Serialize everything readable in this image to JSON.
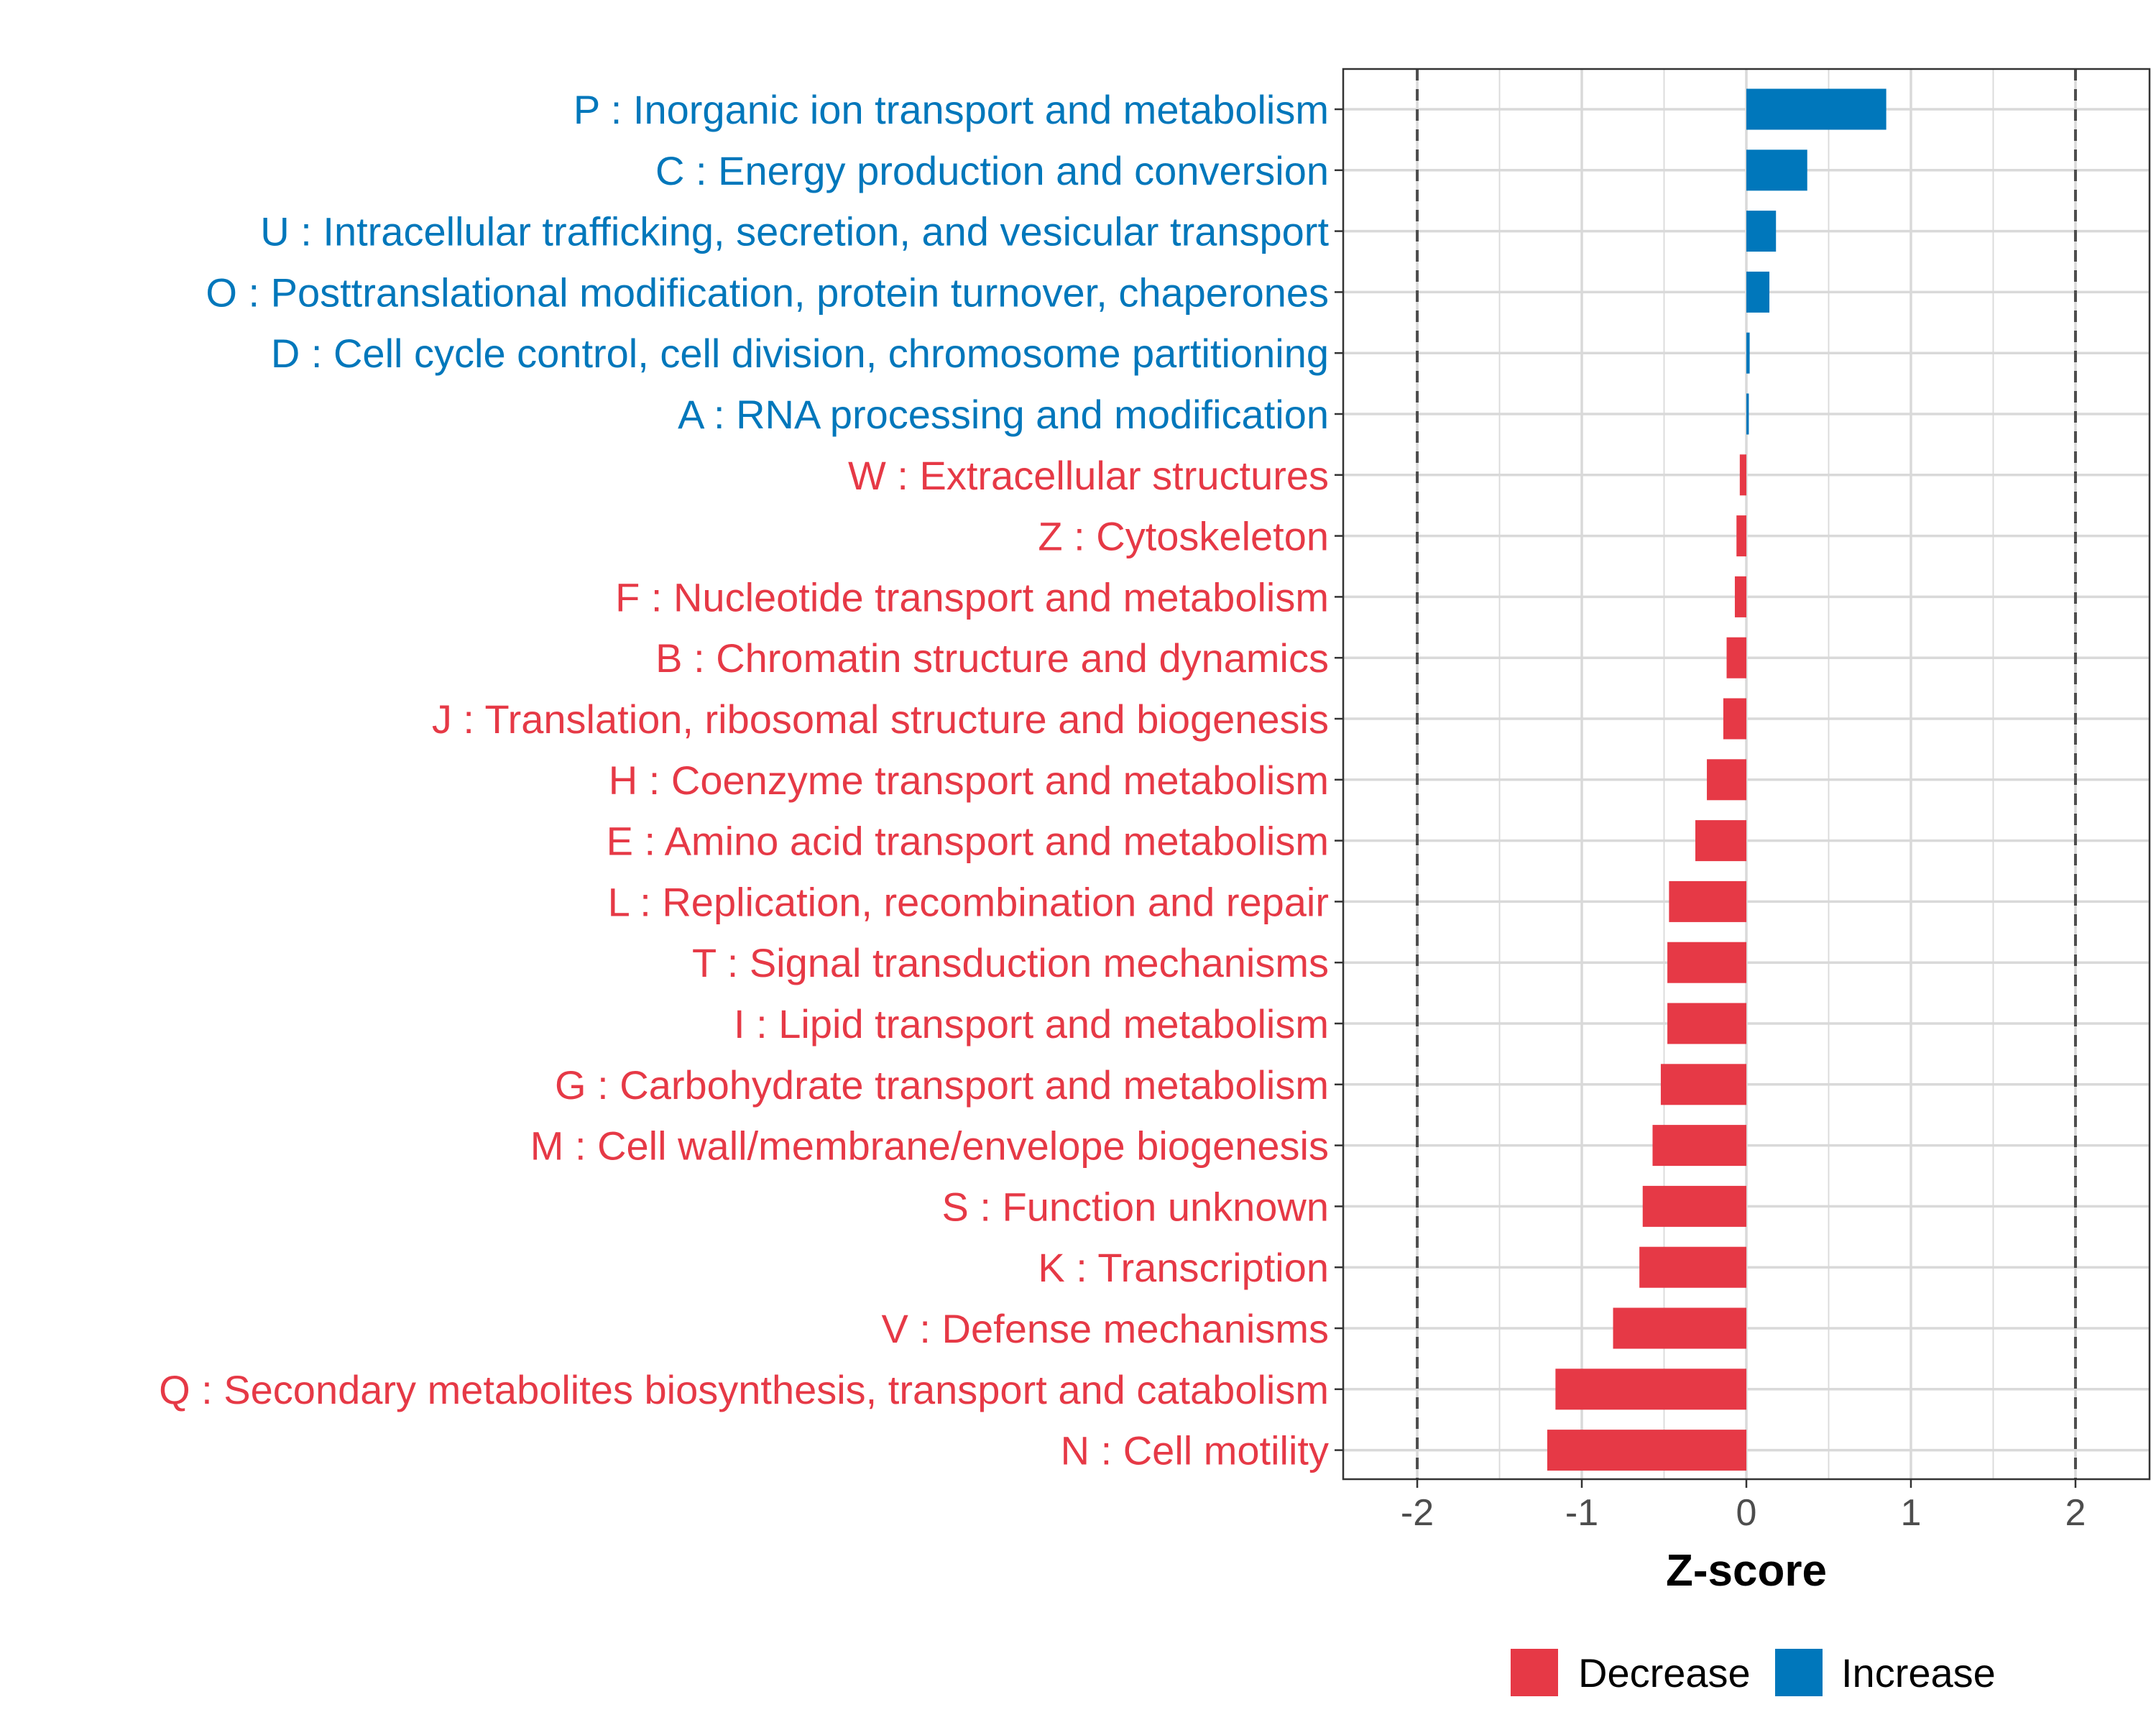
{
  "colors": {
    "decrease": "#E63946",
    "increase": "#0077BB",
    "grid": "#D9D9D9",
    "axis": "#333333",
    "tick_text": "#4D4D4D",
    "ref_line": "#4D4D4D"
  },
  "chart_data": {
    "type": "bar",
    "orientation": "horizontal",
    "title": "",
    "xlabel": "Z-score",
    "ylabel": "",
    "xlim": [
      -2.45,
      2.45
    ],
    "xticks": [
      -2,
      -1,
      0,
      1,
      2
    ],
    "xtick_labels": [
      "-2",
      "-1",
      "0",
      "1",
      "2"
    ],
    "reference_lines": [
      -2,
      2
    ],
    "grid": true,
    "legend_position": "bottom",
    "legend": [
      {
        "label": "Decrease",
        "color_key": "decrease"
      },
      {
        "label": "Increase",
        "color_key": "increase"
      }
    ],
    "categories": [
      "P : Inorganic ion transport and metabolism",
      "C : Energy production and conversion",
      "U : Intracellular trafficking, secretion, and vesicular transport",
      "O : Posttranslational modification, protein turnover, chaperones",
      "D : Cell cycle control, cell division, chromosome partitioning",
      "A : RNA processing and modification",
      "W : Extracellular structures",
      "Z : Cytoskeleton",
      "F : Nucleotide transport and metabolism",
      "B : Chromatin structure and dynamics",
      "J : Translation, ribosomal structure and biogenesis",
      "H : Coenzyme transport and metabolism",
      "E : Amino acid transport and metabolism",
      "L : Replication, recombination and repair",
      "T : Signal transduction mechanisms",
      "I : Lipid transport and metabolism",
      "G : Carbohydrate transport and metabolism",
      "M : Cell wall/membrane/envelope biogenesis",
      "S : Function unknown",
      "K : Transcription",
      "V : Defense mechanisms",
      "Q : Secondary metabolites biosynthesis, transport and catabolism",
      "N : Cell motility"
    ],
    "values": [
      0.85,
      0.37,
      0.18,
      0.14,
      0.02,
      0.015,
      -0.04,
      -0.06,
      -0.07,
      -0.12,
      -0.14,
      -0.24,
      -0.31,
      -0.47,
      -0.48,
      -0.48,
      -0.52,
      -0.57,
      -0.63,
      -0.65,
      -0.81,
      -1.16,
      -1.21
    ],
    "groups": [
      "Increase",
      "Increase",
      "Increase",
      "Increase",
      "Increase",
      "Increase",
      "Decrease",
      "Decrease",
      "Decrease",
      "Decrease",
      "Decrease",
      "Decrease",
      "Decrease",
      "Decrease",
      "Decrease",
      "Decrease",
      "Decrease",
      "Decrease",
      "Decrease",
      "Decrease",
      "Decrease",
      "Decrease",
      "Decrease"
    ]
  }
}
